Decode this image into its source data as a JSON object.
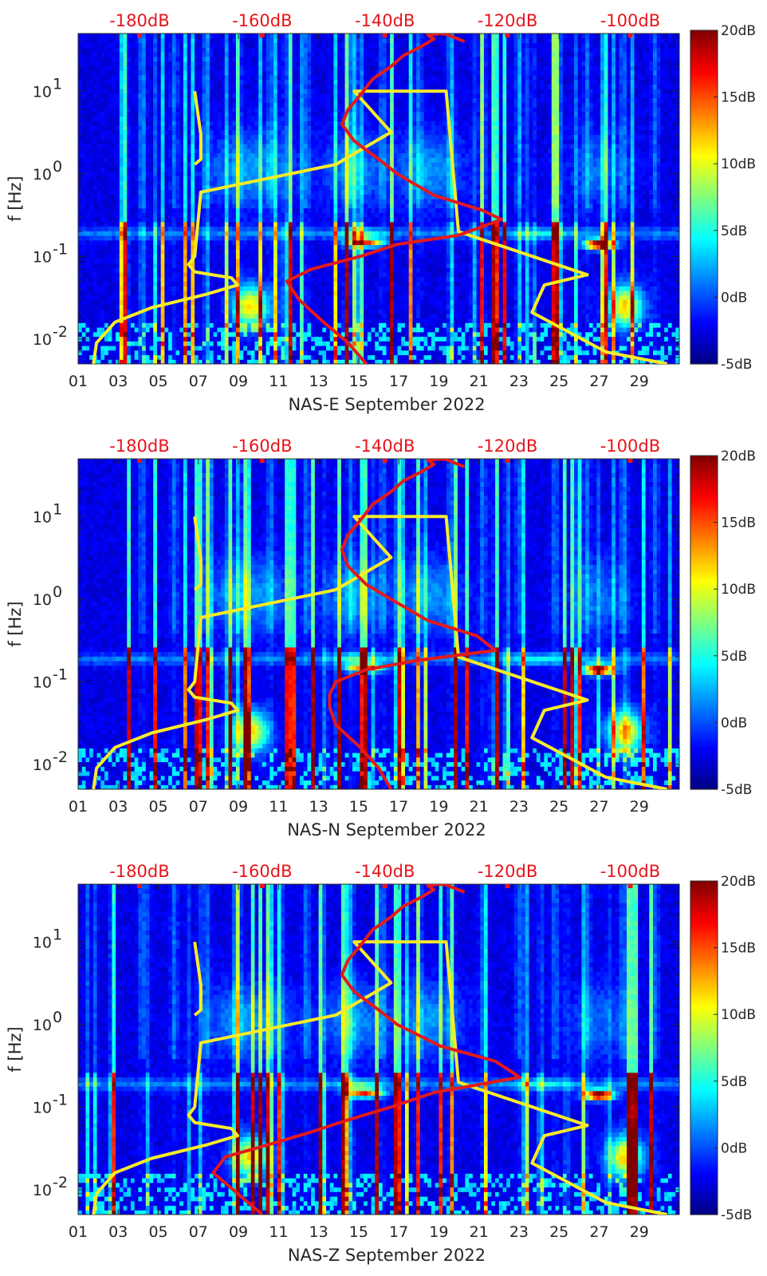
{
  "chart_data": [
    {
      "type": "heatmap",
      "xlabel": "NAS-E September 2022",
      "ylabel": "f [Hz]",
      "x_ticks": [
        "01",
        "03",
        "05",
        "07",
        "09",
        "11",
        "13",
        "15",
        "17",
        "19",
        "21",
        "23",
        "25",
        "27",
        "29"
      ],
      "x_range_days": [
        1,
        31
      ],
      "y_ticks": [
        "10^{-2}",
        "10^{-1}",
        "10^{0}",
        "10^{1}"
      ],
      "y_range_hz": [
        0.005,
        50
      ],
      "y_scale": "log",
      "top_axis_labels": [
        "-180dB",
        "-160dB",
        "-140dB",
        "-120dB",
        "-100dB"
      ],
      "top_axis_range_db": [
        -190,
        -92
      ],
      "colorbar_ticks": [
        "-5dB",
        "0dB",
        "5dB",
        "10dB",
        "15dB",
        "20dB"
      ],
      "colorbar_range_db": [
        -5,
        20
      ],
      "colormap": "jet",
      "series": [
        {
          "color": "#f6ec27",
          "x_db": [
            -187.5,
            -187.0,
            -184,
            -178,
            -169,
            -164,
            -165,
            -171,
            -172,
            -171,
            -170,
            -148,
            -139,
            -145,
            -130,
            -128,
            -107,
            -114,
            -116,
            -104,
            -94
          ],
          "y_hz": [
            0.005,
            0.009,
            0.016,
            0.024,
            0.035,
            0.045,
            0.055,
            0.065,
            0.08,
            0.1,
            0.6,
            1.3,
            3.2,
            10,
            10,
            0.2,
            0.06,
            0.045,
            0.021,
            0.007,
            0.005
          ]
        },
        {
          "color": "#f6ec27",
          "x_db": [
            -171,
            -170,
            -170,
            -171
          ],
          "y_hz": [
            10,
            3,
            1.5,
            1.3
          ]
        },
        {
          "color": "#e31a1c",
          "x_db": [
            -143,
            -146,
            -150,
            -154,
            -156,
            -152,
            -144,
            -138,
            -128,
            -121,
            -124,
            -132,
            -138,
            -141,
            -145,
            -147,
            -146,
            -144,
            -142,
            -139,
            -137,
            -134,
            -132,
            -133,
            -131,
            -130,
            -127
          ],
          "y_hz": [
            0.005,
            0.009,
            0.016,
            0.03,
            0.05,
            0.07,
            0.1,
            0.14,
            0.18,
            0.28,
            0.36,
            0.55,
            1.0,
            1.5,
            2.5,
            4.0,
            6.0,
            9.0,
            14,
            20,
            27,
            35,
            43,
            48,
            50,
            49,
            40
          ]
        }
      ]
    },
    {
      "type": "heatmap",
      "xlabel": "NAS-N September 2022",
      "ylabel": "f [Hz]",
      "x_ticks": [
        "01",
        "03",
        "05",
        "07",
        "09",
        "11",
        "13",
        "15",
        "17",
        "19",
        "21",
        "23",
        "25",
        "27",
        "29"
      ],
      "x_range_days": [
        1,
        31
      ],
      "y_ticks": [
        "10^{-2}",
        "10^{-1}",
        "10^{0}",
        "10^{1}"
      ],
      "y_range_hz": [
        0.005,
        50
      ],
      "y_scale": "log",
      "top_axis_labels": [
        "-180dB",
        "-160dB",
        "-140dB",
        "-120dB",
        "-100dB"
      ],
      "top_axis_range_db": [
        -190,
        -92
      ],
      "colorbar_ticks": [
        "-5dB",
        "0dB",
        "5dB",
        "10dB",
        "15dB",
        "20dB"
      ],
      "colorbar_range_db": [
        -5,
        20
      ],
      "colormap": "jet",
      "series": [
        {
          "color": "#f6ec27",
          "x_db": [
            -187.5,
            -187.0,
            -184,
            -178,
            -169,
            -164,
            -165,
            -171,
            -172,
            -171,
            -170,
            -148,
            -139,
            -145,
            -130,
            -128,
            -107,
            -114,
            -116,
            -104,
            -94
          ],
          "y_hz": [
            0.005,
            0.009,
            0.016,
            0.024,
            0.035,
            0.045,
            0.055,
            0.065,
            0.08,
            0.1,
            0.6,
            1.3,
            3.2,
            10,
            10,
            0.2,
            0.06,
            0.045,
            0.021,
            0.007,
            0.005
          ]
        },
        {
          "color": "#f6ec27",
          "x_db": [
            -171,
            -170,
            -170,
            -171
          ],
          "y_hz": [
            10,
            3,
            1.5,
            1.3
          ]
        },
        {
          "color": "#e31a1c",
          "x_db": [
            -139,
            -141,
            -144,
            -148,
            -149,
            -149,
            -148,
            -143,
            -135,
            -122,
            -125,
            -133,
            -139,
            -143,
            -146,
            -147,
            -146,
            -144,
            -142,
            -139,
            -137,
            -134,
            -132,
            -133,
            -131,
            -130,
            -127
          ],
          "y_hz": [
            0.005,
            0.009,
            0.016,
            0.03,
            0.05,
            0.07,
            0.1,
            0.14,
            0.18,
            0.24,
            0.36,
            0.55,
            1.0,
            1.5,
            2.5,
            4.0,
            6.0,
            9.0,
            14,
            20,
            27,
            35,
            43,
            48,
            50,
            49,
            40
          ]
        }
      ]
    },
    {
      "type": "heatmap",
      "xlabel": "NAS-Z September 2022",
      "ylabel": "f [Hz]",
      "x_ticks": [
        "01",
        "03",
        "05",
        "07",
        "09",
        "11",
        "13",
        "15",
        "17",
        "19",
        "21",
        "23",
        "25",
        "27",
        "29"
      ],
      "x_range_days": [
        1,
        31
      ],
      "y_ticks": [
        "10^{-2}",
        "10^{-1}",
        "10^{0}",
        "10^{1}"
      ],
      "y_range_hz": [
        0.005,
        50
      ],
      "y_scale": "log",
      "top_axis_labels": [
        "-180dB",
        "-160dB",
        "-140dB",
        "-120dB",
        "-100dB"
      ],
      "top_axis_range_db": [
        -190,
        -92
      ],
      "colorbar_ticks": [
        "-5dB",
        "0dB",
        "5dB",
        "10dB",
        "15dB",
        "20dB"
      ],
      "colorbar_range_db": [
        -5,
        20
      ],
      "colormap": "jet",
      "series": [
        {
          "color": "#f6ec27",
          "x_db": [
            -187.5,
            -187.0,
            -184,
            -178,
            -169,
            -164,
            -165,
            -171,
            -172,
            -171,
            -170,
            -148,
            -139,
            -145,
            -130,
            -128,
            -107,
            -114,
            -116,
            -104,
            -94
          ],
          "y_hz": [
            0.005,
            0.009,
            0.016,
            0.024,
            0.035,
            0.045,
            0.055,
            0.065,
            0.08,
            0.1,
            0.6,
            1.3,
            3.2,
            10,
            10,
            0.2,
            0.06,
            0.045,
            0.021,
            0.007,
            0.005
          ]
        },
        {
          "color": "#f6ec27",
          "x_db": [
            -171,
            -170,
            -170,
            -171
          ],
          "y_hz": [
            10,
            3,
            1.5,
            1.3
          ]
        },
        {
          "color": "#e31a1c",
          "x_db": [
            -160,
            -164,
            -168,
            -166,
            -159,
            -152,
            -146,
            -139,
            -132,
            -118,
            -122,
            -131,
            -138,
            -141,
            -145,
            -147,
            -146,
            -144,
            -142,
            -139,
            -137,
            -134,
            -132,
            -133,
            -131,
            -130,
            -127
          ],
          "y_hz": [
            0.005,
            0.009,
            0.016,
            0.025,
            0.035,
            0.05,
            0.07,
            0.1,
            0.15,
            0.23,
            0.36,
            0.55,
            1.0,
            1.5,
            2.5,
            4.0,
            6.0,
            9.0,
            14,
            20,
            27,
            35,
            43,
            48,
            50,
            49,
            40
          ]
        }
      ]
    }
  ]
}
